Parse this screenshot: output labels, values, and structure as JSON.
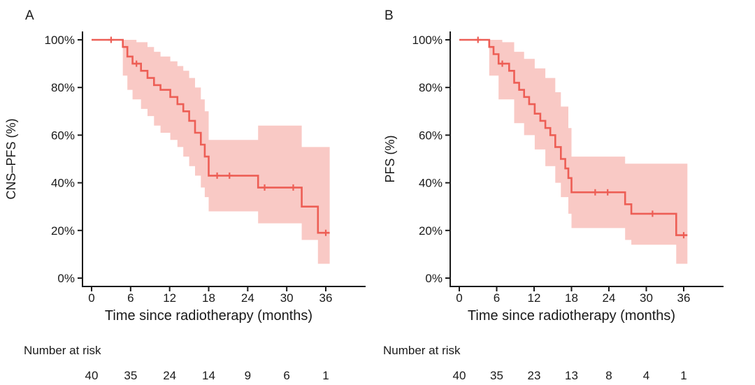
{
  "figure": {
    "background": "#ffffff",
    "text_color": "#1a1a1a"
  },
  "chart_data": [
    {
      "type": "line",
      "subtype": "kaplan-meier-step",
      "panel_label": "A",
      "title": "",
      "ylabel": "CNS–PFS (%)",
      "xlabel": "Time since radiotherapy (months)",
      "xlim": [
        0,
        38
      ],
      "ylim": [
        0,
        100
      ],
      "xticks": [
        0,
        6,
        12,
        18,
        24,
        30,
        36
      ],
      "ytick_values": [
        0,
        20,
        40,
        60,
        80,
        100
      ],
      "ytick_labels": [
        "0%",
        "20%",
        "40%",
        "60%",
        "80%",
        "100%"
      ],
      "grid": false,
      "legend": "none",
      "line_color": "#ed5e55",
      "band_color": "#f9c9c5",
      "axis_color": "#1a1a1a",
      "end_time": 36.6,
      "survival_steps": [
        [
          0,
          100
        ],
        [
          4.8,
          97
        ],
        [
          5.5,
          93
        ],
        [
          6.3,
          90
        ],
        [
          7.6,
          87
        ],
        [
          8.6,
          84
        ],
        [
          9.6,
          81
        ],
        [
          10.6,
          79
        ],
        [
          12.1,
          76
        ],
        [
          13.2,
          73
        ],
        [
          14.1,
          70
        ],
        [
          15,
          66
        ],
        [
          15.9,
          61
        ],
        [
          16.8,
          56
        ],
        [
          17.4,
          51
        ],
        [
          18,
          43
        ],
        [
          25.6,
          38
        ],
        [
          32.3,
          30
        ],
        [
          34.8,
          19
        ]
      ],
      "censor_marks": [
        [
          3,
          100
        ],
        [
          6.9,
          90
        ],
        [
          19.3,
          43
        ],
        [
          21.2,
          43
        ],
        [
          26.6,
          38
        ],
        [
          31,
          38
        ],
        [
          36,
          19
        ]
      ],
      "ci_upper": [
        [
          0,
          100
        ],
        [
          6.9,
          99
        ],
        [
          8.6,
          97
        ],
        [
          9.6,
          95
        ],
        [
          10.6,
          93
        ],
        [
          12.1,
          91
        ],
        [
          13.2,
          89
        ],
        [
          14.1,
          87
        ],
        [
          15,
          84
        ],
        [
          15.9,
          80
        ],
        [
          16.8,
          75
        ],
        [
          17.4,
          70
        ],
        [
          18,
          58
        ],
        [
          25.6,
          64
        ],
        [
          32.3,
          55
        ]
      ],
      "ci_lower": [
        [
          0,
          100
        ],
        [
          4.8,
          85
        ],
        [
          5.5,
          79
        ],
        [
          6.3,
          75
        ],
        [
          7.6,
          71
        ],
        [
          8.6,
          68
        ],
        [
          9.6,
          64
        ],
        [
          10.6,
          61
        ],
        [
          12.1,
          58
        ],
        [
          13.2,
          55
        ],
        [
          14.1,
          51
        ],
        [
          15,
          47
        ],
        [
          15.9,
          43
        ],
        [
          16.8,
          38
        ],
        [
          17.4,
          34
        ],
        [
          18,
          28
        ],
        [
          25.6,
          23
        ],
        [
          32.3,
          16
        ],
        [
          34.8,
          6
        ]
      ],
      "number_at_risk": {
        "title": "Number at risk",
        "times": [
          0,
          6,
          12,
          18,
          24,
          30,
          36
        ],
        "counts": [
          40,
          35,
          24,
          14,
          9,
          6,
          1
        ]
      }
    },
    {
      "type": "line",
      "subtype": "kaplan-meier-step",
      "panel_label": "B",
      "title": "",
      "ylabel": "PFS (%)",
      "xlabel": "Time since radiotherapy (months)",
      "xlim": [
        0,
        38
      ],
      "ylim": [
        0,
        100
      ],
      "xticks": [
        0,
        6,
        12,
        18,
        24,
        30,
        36
      ],
      "ytick_values": [
        0,
        20,
        40,
        60,
        80,
        100
      ],
      "ytick_labels": [
        "0%",
        "20%",
        "40%",
        "60%",
        "80%",
        "100%"
      ],
      "grid": false,
      "legend": "none",
      "line_color": "#ed5e55",
      "band_color": "#f9c9c5",
      "axis_color": "#1a1a1a",
      "end_time": 36.6,
      "survival_steps": [
        [
          0,
          100
        ],
        [
          4.8,
          97
        ],
        [
          5.5,
          94
        ],
        [
          6.3,
          90
        ],
        [
          8,
          87
        ],
        [
          8.8,
          82
        ],
        [
          9.6,
          79
        ],
        [
          10.4,
          76
        ],
        [
          11.2,
          73
        ],
        [
          12.1,
          69
        ],
        [
          13,
          66
        ],
        [
          13.8,
          63
        ],
        [
          14.6,
          60
        ],
        [
          15.4,
          55
        ],
        [
          16.3,
          50
        ],
        [
          17,
          46
        ],
        [
          17.5,
          42
        ],
        [
          18,
          36
        ],
        [
          26.6,
          31
        ],
        [
          27.6,
          27
        ],
        [
          34.8,
          18
        ]
      ],
      "censor_marks": [
        [
          3,
          100
        ],
        [
          6.9,
          90
        ],
        [
          21.8,
          36
        ],
        [
          23.8,
          36
        ],
        [
          31,
          27
        ],
        [
          36,
          18
        ]
      ],
      "ci_upper": [
        [
          0,
          100
        ],
        [
          6.9,
          99
        ],
        [
          8.8,
          95
        ],
        [
          10.4,
          92
        ],
        [
          12.1,
          88
        ],
        [
          13.8,
          84
        ],
        [
          15.4,
          78
        ],
        [
          16.3,
          72
        ],
        [
          17.5,
          63
        ],
        [
          18,
          51
        ],
        [
          26.6,
          48
        ]
      ],
      "ci_lower": [
        [
          0,
          100
        ],
        [
          4.8,
          85
        ],
        [
          6.3,
          75
        ],
        [
          8.8,
          65
        ],
        [
          10.4,
          60
        ],
        [
          12.1,
          54
        ],
        [
          13.8,
          47
        ],
        [
          15.4,
          40
        ],
        [
          16.3,
          34
        ],
        [
          17.5,
          27
        ],
        [
          18,
          21
        ],
        [
          26.6,
          16
        ],
        [
          27.6,
          14
        ],
        [
          34.8,
          6
        ]
      ],
      "number_at_risk": {
        "title": "Number at risk",
        "times": [
          0,
          6,
          12,
          18,
          24,
          30,
          36
        ],
        "counts": [
          40,
          35,
          23,
          13,
          8,
          4,
          1
        ]
      }
    }
  ]
}
